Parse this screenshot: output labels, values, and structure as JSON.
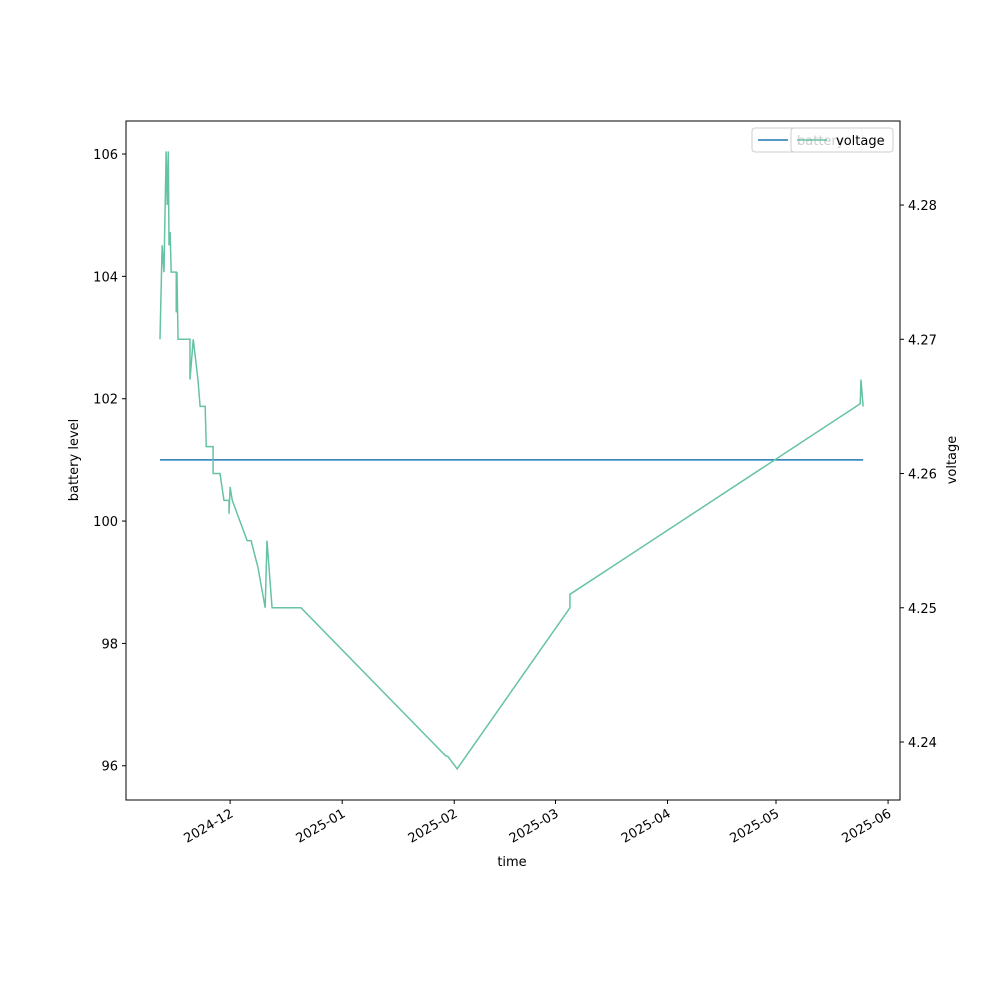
{
  "chart_data": {
    "type": "line",
    "xlabel": "time",
    "ylabel": "battery level",
    "y2label": "voltage",
    "xlim": [
      20029.2,
      20243.3
    ],
    "xticks": [
      {
        "value": 20058,
        "label": "2024-12"
      },
      {
        "value": 20089,
        "label": "2025-01"
      },
      {
        "value": 20120,
        "label": "2025-02"
      },
      {
        "value": 20148,
        "label": "2025-03"
      },
      {
        "value": 20179,
        "label": "2025-04"
      },
      {
        "value": 20209,
        "label": "2025-05"
      },
      {
        "value": 20240,
        "label": "2025-06"
      }
    ],
    "ylim": [
      95.44,
      106.54
    ],
    "yticks": [
      96,
      98,
      100,
      102,
      104,
      106
    ],
    "y2lim": [
      4.23568,
      4.28626
    ],
    "y2ticks": [
      4.24,
      4.25,
      4.26,
      4.27,
      4.28
    ],
    "legend": "upper right",
    "series": [
      {
        "name": "battery",
        "color": "#1f77b4",
        "x": [
          20038.6,
          20233.1
        ],
        "values": [
          101,
          101
        ]
      },
      {
        "name": "voltage",
        "color": "#66c2a5",
        "axis": "y2",
        "x": [
          20038.6,
          20039.2,
          20039.7,
          20040.3,
          20040.6,
          20040.9,
          20041.1,
          20041.4,
          20041.7,
          20043.1,
          20043.1,
          20043.3,
          20043.6,
          20046.9,
          20046.9,
          20047.8,
          20049.1,
          20049.7,
          20051.1,
          20051.4,
          20053.3,
          20053.3,
          20055.2,
          20056.3,
          20057.7,
          20057.7,
          20058.0,
          20058.6,
          20062.7,
          20063.8,
          20065.7,
          20067.7,
          20068.2,
          20069.6,
          20077.6,
          20117.5,
          20118.3,
          20120.8,
          20152.0,
          20152.0,
          20232.3,
          20232.5,
          20233.1
        ],
        "values": [
          4.27,
          4.277,
          4.275,
          4.284,
          4.28,
          4.284,
          4.277,
          4.278,
          4.275,
          4.275,
          4.272,
          4.275,
          4.27,
          4.27,
          4.267,
          4.27,
          4.267,
          4.265,
          4.265,
          4.262,
          4.262,
          4.26,
          4.26,
          4.258,
          4.258,
          4.257,
          4.259,
          4.258,
          4.255,
          4.255,
          4.253,
          4.25,
          4.255,
          4.25,
          4.25,
          4.239,
          4.2389,
          4.238,
          4.25,
          4.251,
          4.2652,
          4.267,
          4.265
        ]
      }
    ]
  }
}
